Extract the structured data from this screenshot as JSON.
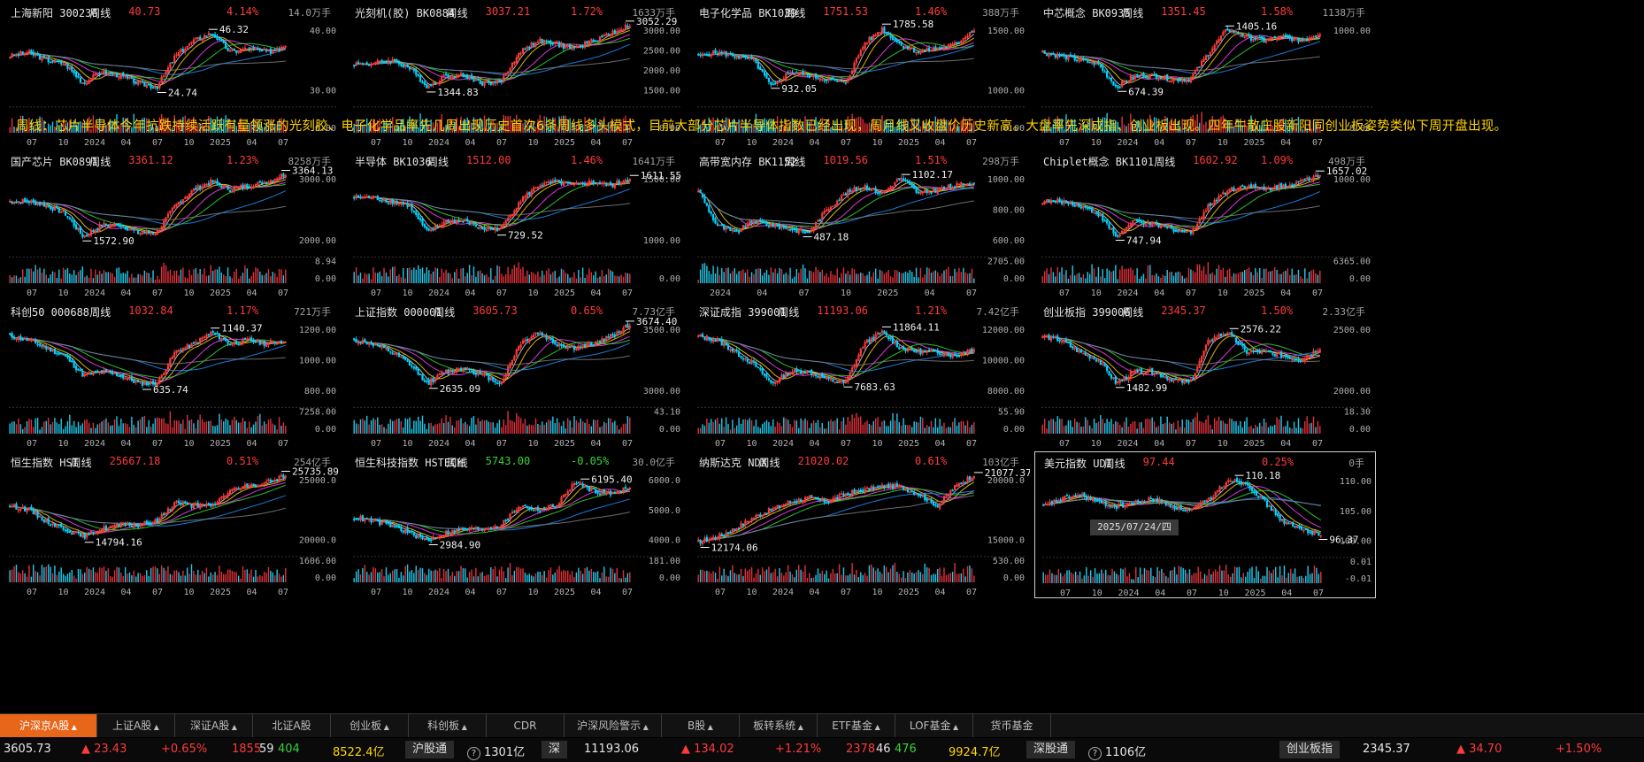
{
  "caption": "周线：芯片半导体今年抗跌持续活跃有量领涨的光刻胶、电子化学品率先几周出现历史首次6条周线多头模式，目前大部分芯片半导体指数已经出现，周月线又收盘价历史新高。大盘率先深成指、创业板出现。四年牛散庄股新阳同创业板姿势类似下周开盘出现。",
  "colors": {
    "up": "#ff3a3a",
    "down": "#00d2ff",
    "upBar": "#ff3a3a",
    "volUp": "#e0303a",
    "volDown": "#20c8e8",
    "ma": [
      "#ffffff",
      "#ffd400",
      "#ff40ff",
      "#30e030",
      "#1e90ff",
      "#808080"
    ]
  },
  "crosshair_date": "2025/07/24/四",
  "panels": [
    {
      "name": "上海新阳 300236",
      "period": "周线",
      "price": "40.73",
      "change": "4.14%",
      "volume": "14.0万手",
      "y_ticks": [
        "40.00",
        "30.00"
      ],
      "vol_ticks": [
        "0.00"
      ],
      "x_ticks": [
        "07",
        "10",
        "2024",
        "04",
        "07",
        "10",
        "2025",
        "04",
        "07"
      ],
      "hi": "46.32",
      "lo": "24.74",
      "shape": [
        0.55,
        0.6,
        0.5,
        0.45,
        0.2,
        0.35,
        0.3,
        0.2,
        0.15,
        0.55,
        0.75,
        0.85,
        0.6,
        0.65,
        0.6,
        0.7
      ]
    },
    {
      "name": "光刻机(胶) BK0884",
      "period": "周线",
      "price": "3037.21",
      "change": "1.72%",
      "volume": "1633万手",
      "y_ticks": [
        "3000.00",
        "2500.00",
        "2000.00",
        "1500.00"
      ],
      "vol_ticks": [
        "0.00"
      ],
      "x_ticks": [
        "07",
        "10",
        "2024",
        "04",
        "07",
        "10",
        "2025",
        "04",
        "07"
      ],
      "hi": "3052.29",
      "lo": "1344.83",
      "shape": [
        0.45,
        0.45,
        0.5,
        0.4,
        0.15,
        0.3,
        0.3,
        0.2,
        0.22,
        0.6,
        0.75,
        0.7,
        0.65,
        0.75,
        0.85,
        0.95
      ]
    },
    {
      "name": "电子化学品 BK1039",
      "period": "周线",
      "price": "1751.53",
      "change": "1.46%",
      "volume": "388万手",
      "y_ticks": [
        "1500.00",
        "1000.00"
      ],
      "vol_ticks": [
        "0.00"
      ],
      "x_ticks": [
        "07",
        "10",
        "2024",
        "04",
        "07",
        "10",
        "2025",
        "04",
        "07"
      ],
      "hi": "1785.58",
      "lo": "932.05",
      "shape": [
        0.55,
        0.6,
        0.55,
        0.5,
        0.15,
        0.35,
        0.3,
        0.25,
        0.2,
        0.7,
        0.9,
        0.7,
        0.6,
        0.65,
        0.7,
        0.9
      ]
    },
    {
      "name": "中芯概念 BK0935",
      "period": "周线",
      "price": "1351.45",
      "change": "1.58%",
      "volume": "1138万手",
      "y_ticks": [
        "1000.00"
      ],
      "vol_ticks": [
        "0.00"
      ],
      "x_ticks": [
        "07",
        "10",
        "2024",
        "04",
        "07",
        "10",
        "2025",
        "04",
        "07"
      ],
      "hi": "1405.16",
      "lo": "674.39",
      "shape": [
        0.6,
        0.55,
        0.5,
        0.45,
        0.15,
        0.3,
        0.3,
        0.25,
        0.25,
        0.6,
        0.9,
        0.8,
        0.75,
        0.8,
        0.75,
        0.85
      ]
    },
    {
      "name": "国产芯片 BK0891",
      "period": "周线",
      "price": "3361.12",
      "change": "1.23%",
      "volume": "8258万手",
      "y_ticks": [
        "3000.00",
        "2000.00"
      ],
      "vol_ticks": [
        "8.94",
        "0.00"
      ],
      "x_ticks": [
        "07",
        "10",
        "2024",
        "04",
        "07",
        "10",
        "2025",
        "04",
        "07"
      ],
      "hi": "3364.13",
      "lo": "1572.90",
      "shape": [
        0.6,
        0.6,
        0.55,
        0.45,
        0.15,
        0.3,
        0.3,
        0.2,
        0.2,
        0.55,
        0.75,
        0.85,
        0.75,
        0.8,
        0.85,
        0.95
      ]
    },
    {
      "name": "半导体 BK1036",
      "period": "周线",
      "price": "1512.00",
      "change": "1.46%",
      "volume": "1641万手",
      "y_ticks": [
        "1500.00",
        "1000.00"
      ],
      "vol_ticks": [
        "0.00"
      ],
      "x_ticks": [
        "07",
        "10",
        "2024",
        "04",
        "07",
        "10",
        "2025",
        "04",
        "07"
      ],
      "hi": "1611.55",
      "lo": "729.52",
      "shape": [
        0.65,
        0.65,
        0.6,
        0.55,
        0.2,
        0.35,
        0.35,
        0.25,
        0.25,
        0.6,
        0.8,
        0.85,
        0.8,
        0.85,
        0.8,
        0.9
      ]
    },
    {
      "name": "高带宽内存 BK1152",
      "period": "周线",
      "price": "1019.56",
      "change": "1.51%",
      "volume": "298万手",
      "y_ticks": [
        "1000.00",
        "800.00",
        "600.00"
      ],
      "vol_ticks": [
        "2705.00",
        "0.00"
      ],
      "x_ticks": [
        "2024",
        "04",
        "07",
        "10",
        "2025",
        "04",
        "07"
      ],
      "hi": "1102.17",
      "lo": "487.18",
      "shape": [
        0.75,
        0.3,
        0.2,
        0.35,
        0.3,
        0.25,
        0.2,
        0.5,
        0.7,
        0.8,
        0.7,
        0.9,
        0.7,
        0.75,
        0.8,
        0.85
      ]
    },
    {
      "name": "Chiplet概念 BK1101",
      "period": "周线",
      "price": "1602.92",
      "change": "1.09%",
      "volume": "498万手",
      "y_ticks": [
        "1000.00"
      ],
      "vol_ticks": [
        "6365.00",
        "0.00"
      ],
      "x_ticks": [
        "07",
        "10",
        "2024",
        "04",
        "07",
        "10",
        "2025",
        "04",
        "07"
      ],
      "hi": "1657.02",
      "lo": "747.94",
      "shape": [
        0.6,
        0.6,
        0.55,
        0.45,
        0.15,
        0.35,
        0.3,
        0.25,
        0.2,
        0.55,
        0.75,
        0.8,
        0.75,
        0.8,
        0.85,
        0.95
      ]
    },
    {
      "name": "科创50 000688",
      "period": "周线",
      "price": "1032.84",
      "change": "1.17%",
      "volume": "721万手",
      "y_ticks": [
        "1200.00",
        "1000.00",
        "800.00"
      ],
      "vol_ticks": [
        "7258.00",
        "0.00"
      ],
      "x_ticks": [
        "07",
        "10",
        "2024",
        "04",
        "07",
        "10",
        "2025",
        "04",
        "07"
      ],
      "hi": "1140.37",
      "lo": "635.74",
      "shape": [
        0.8,
        0.75,
        0.65,
        0.55,
        0.3,
        0.35,
        0.3,
        0.2,
        0.2,
        0.6,
        0.7,
        0.85,
        0.7,
        0.75,
        0.7,
        0.75
      ]
    },
    {
      "name": "上证指数 000001",
      "period": "周线",
      "price": "3605.73",
      "change": "0.65%",
      "volume": "7.73亿手",
      "y_ticks": [
        "3500.00",
        "3000.00"
      ],
      "vol_ticks": [
        "43.10",
        "0.00"
      ],
      "x_ticks": [
        "07",
        "10",
        "2024",
        "04",
        "07",
        "10",
        "2025",
        "04",
        "07"
      ],
      "hi": "3674.40",
      "lo": "2635.09",
      "shape": [
        0.75,
        0.7,
        0.6,
        0.45,
        0.2,
        0.35,
        0.4,
        0.3,
        0.2,
        0.7,
        0.85,
        0.7,
        0.65,
        0.7,
        0.8,
        0.95
      ]
    },
    {
      "name": "深证成指 399001",
      "period": "周线",
      "price": "11193.06",
      "change": "1.21%",
      "volume": "7.42亿手",
      "y_ticks": [
        "12000.00",
        "10000.00",
        "8000.00"
      ],
      "vol_ticks": [
        "55.90",
        "0.00"
      ],
      "x_ticks": [
        "07",
        "10",
        "2024",
        "04",
        "07",
        "10",
        "2025",
        "04",
        "07"
      ],
      "hi": "11864.11",
      "lo": "7683.63",
      "shape": [
        0.8,
        0.75,
        0.6,
        0.45,
        0.2,
        0.35,
        0.35,
        0.25,
        0.2,
        0.7,
        0.85,
        0.65,
        0.6,
        0.6,
        0.55,
        0.65
      ]
    },
    {
      "name": "创业板指 399006",
      "period": "周线",
      "price": "2345.37",
      "change": "1.50%",
      "volume": "2.33亿手",
      "y_ticks": [
        "2500.00",
        "2000.00"
      ],
      "vol_ticks": [
        "18.30",
        "0.00"
      ],
      "x_ticks": [
        "07",
        "10",
        "2024",
        "04",
        "07",
        "10",
        "2025",
        "04",
        "07"
      ],
      "hi": "2576.22",
      "lo": "1482.99",
      "shape": [
        0.8,
        0.75,
        0.6,
        0.5,
        0.2,
        0.35,
        0.35,
        0.25,
        0.2,
        0.75,
        0.85,
        0.6,
        0.6,
        0.55,
        0.5,
        0.65
      ]
    },
    {
      "name": "恒生指数 HSI",
      "period": "周线",
      "price": "25667.18",
      "change": "0.51%",
      "volume": "254亿手",
      "y_ticks": [
        "25000.0",
        "20000.0"
      ],
      "vol_ticks": [
        "1606.00",
        "0.00"
      ],
      "x_ticks": [
        "07",
        "10",
        "2024",
        "04",
        "07",
        "10",
        "2025",
        "04",
        "07"
      ],
      "hi": "25735.89",
      "lo": "14794.16",
      "shape": [
        0.55,
        0.5,
        0.35,
        0.25,
        0.15,
        0.25,
        0.3,
        0.3,
        0.35,
        0.6,
        0.55,
        0.55,
        0.75,
        0.8,
        0.85,
        0.95
      ]
    },
    {
      "name": "恒生科技指数 HSTECH",
      "period": "周线",
      "price": "5743.00",
      "change": "-0.05%",
      "volume": "30.0亿手",
      "y_ticks": [
        "6000.0",
        "5000.0",
        "4000.0"
      ],
      "vol_ticks": [
        "181.00",
        "0.00"
      ],
      "x_ticks": [
        "07",
        "10",
        "2024",
        "04",
        "07",
        "10",
        "2025",
        "04",
        "07"
      ],
      "hi": "6195.40",
      "lo": "2984.90",
      "shape": [
        0.4,
        0.35,
        0.3,
        0.2,
        0.1,
        0.2,
        0.25,
        0.25,
        0.3,
        0.55,
        0.5,
        0.55,
        0.85,
        0.75,
        0.7,
        0.8
      ]
    },
    {
      "name": "纳斯达克 NDX",
      "period": "周线",
      "price": "21020.02",
      "change": "0.61%",
      "volume": "103亿手",
      "y_ticks": [
        "20000.0",
        "15000.0"
      ],
      "vol_ticks": [
        "530.00",
        "0.00"
      ],
      "x_ticks": [
        "07",
        "10",
        "2024",
        "04",
        "07",
        "10",
        "2025",
        "04",
        "07"
      ],
      "hi": "21077.37",
      "lo": "12174.06",
      "shape": [
        0.08,
        0.15,
        0.25,
        0.4,
        0.5,
        0.6,
        0.65,
        0.6,
        0.7,
        0.75,
        0.8,
        0.8,
        0.7,
        0.55,
        0.8,
        0.95
      ]
    },
    {
      "name": "美元指数 UDI",
      "period": "周线",
      "price": "97.44",
      "change": "0.25%",
      "volume": "0手",
      "y_ticks": [
        "110.00",
        "105.00",
        "100.00"
      ],
      "vol_ticks": [
        "0.01",
        "-0.01"
      ],
      "x_ticks": [
        "07",
        "10",
        "2024",
        "04",
        "07",
        "10",
        "2025",
        "04",
        "07"
      ],
      "hi": "110.18",
      "lo": "96.37",
      "shape": [
        0.55,
        0.65,
        0.7,
        0.6,
        0.55,
        0.6,
        0.65,
        0.55,
        0.5,
        0.65,
        0.9,
        0.85,
        0.6,
        0.35,
        0.25,
        0.2
      ]
    }
  ],
  "tabs": [
    {
      "label": "沪深京A股",
      "caret": true,
      "active": true
    },
    {
      "label": "上证A股",
      "caret": true
    },
    {
      "label": "深证A股",
      "caret": true
    },
    {
      "label": "北证A股",
      "caret": false
    },
    {
      "label": "创业板",
      "caret": true
    },
    {
      "label": "科创板",
      "caret": true
    },
    {
      "label": "CDR",
      "caret": false
    },
    {
      "label": "沪深风险警示",
      "caret": true
    },
    {
      "label": "B股",
      "caret": true
    },
    {
      "label": "板转系统",
      "caret": true
    },
    {
      "label": "ETF基金",
      "caret": true
    },
    {
      "label": "LOF基金",
      "caret": true
    },
    {
      "label": "货币基金",
      "caret": false
    }
  ],
  "status": {
    "sh_index": "3605.73",
    "sh_change": "▲ 23.43",
    "sh_pct": "+0.65%",
    "sh_up": "1855",
    "sh_flat": "59",
    "sh_down": "404",
    "sh_amount": "8522.4亿",
    "hgt_label": "沪股通",
    "hgt_value": "1301亿",
    "sz_label": "深",
    "sz_index": "11193.06",
    "sz_change": "▲ 134.02",
    "sz_pct": "+1.21%",
    "sz_up": "2378",
    "sz_flat": "46",
    "sz_down": "476",
    "sz_amount": "9924.7亿",
    "sgt_label": "深股通",
    "sgt_value": "1106亿",
    "cyb_label": "创业板指",
    "cyb_index": "2345.37",
    "cyb_change": "▲ 34.70",
    "cyb_pct": "+1.50%"
  }
}
